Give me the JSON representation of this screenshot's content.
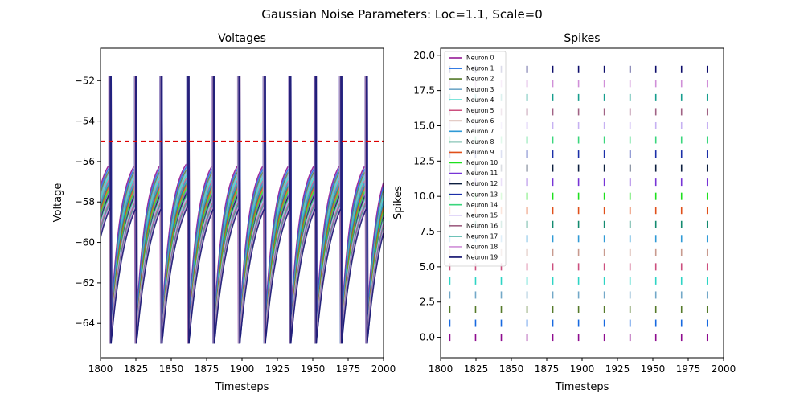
{
  "figure": {
    "suptitle": "Gaussian Noise Parameters: Loc=1.1, Scale=0"
  },
  "chart_data": [
    {
      "type": "line",
      "title": "Voltages",
      "xlabel": "Timesteps",
      "ylabel": "Voltage",
      "xlim": [
        1800,
        2000
      ],
      "ylim": [
        -65.7,
        -50.4
      ],
      "xticks": [
        1800,
        1825,
        1850,
        1875,
        1900,
        1925,
        1950,
        1975,
        2000
      ],
      "yticks": [
        -64,
        -62,
        -60,
        -58,
        -56,
        -54,
        -52
      ],
      "threshold": {
        "y": -55,
        "color": "#dd0000",
        "style": "dashed"
      },
      "reset_voltage": -65,
      "peak_voltage": -51.8,
      "spike_period": 18.2,
      "spike_times_base": [
        1806,
        1824,
        1842,
        1861,
        1879,
        1897,
        1915,
        1933,
        1951,
        1969,
        1987
      ],
      "series_colors": [
        "#8e0b8f",
        "#1769e0",
        "#557a2a",
        "#72a8c8",
        "#2dd4c4",
        "#cc4f7e",
        "#c89a8e",
        "#2f9ad6",
        "#138a6f",
        "#e0501a",
        "#1ee01e",
        "#7734d6",
        "#0c1f3f",
        "#1b2fa8",
        "#3ad67c",
        "#c6b1f2",
        "#a06284",
        "#179e8e",
        "#d08fd8",
        "#0d0d6b"
      ],
      "grid": false,
      "legend": false
    },
    {
      "type": "scatter",
      "title": "Spikes",
      "xlabel": "Timesteps",
      "ylabel": "Spikes",
      "xlim": [
        1800,
        2000
      ],
      "ylim": [
        -1.45,
        20.5
      ],
      "xticks": [
        1800,
        1825,
        1850,
        1875,
        1900,
        1925,
        1950,
        1975,
        2000
      ],
      "yticks": [
        0.0,
        2.5,
        5.0,
        7.5,
        10.0,
        12.5,
        15.0,
        17.5,
        20.0
      ],
      "ytick_labels": [
        "0.0",
        "2.5",
        "5.0",
        "7.5",
        "10.0",
        "12.5",
        "15.0",
        "17.5",
        "20.0"
      ],
      "spike_times": [
        1806.5,
        1824.7,
        1842.9,
        1861.1,
        1879.3,
        1897.5,
        1915.7,
        1933.9,
        1952.1,
        1970.3,
        1988.5
      ],
      "neurons": [
        {
          "name": "Neuron 0",
          "y": 0,
          "color": "#8e0b8f"
        },
        {
          "name": "Neuron 1",
          "y": 1,
          "color": "#1769e0"
        },
        {
          "name": "Neuron 2",
          "y": 2,
          "color": "#557a2a"
        },
        {
          "name": "Neuron 3",
          "y": 3,
          "color": "#72a8c8"
        },
        {
          "name": "Neuron 4",
          "y": 4,
          "color": "#2dd4c4"
        },
        {
          "name": "Neuron 5",
          "y": 5,
          "color": "#cc4f7e"
        },
        {
          "name": "Neuron 6",
          "y": 6,
          "color": "#c89a8e"
        },
        {
          "name": "Neuron 7",
          "y": 7,
          "color": "#2f9ad6"
        },
        {
          "name": "Neuron 8",
          "y": 8,
          "color": "#138a6f"
        },
        {
          "name": "Neuron 9",
          "y": 9,
          "color": "#e0501a"
        },
        {
          "name": "Neuron 10",
          "y": 10,
          "color": "#1ee01e"
        },
        {
          "name": "Neuron 11",
          "y": 11,
          "color": "#7734d6"
        },
        {
          "name": "Neuron 12",
          "y": 12,
          "color": "#0c1f3f"
        },
        {
          "name": "Neuron 13",
          "y": 13,
          "color": "#1b2fa8"
        },
        {
          "name": "Neuron 14",
          "y": 14,
          "color": "#3ad67c"
        },
        {
          "name": "Neuron 15",
          "y": 15,
          "color": "#c6b1f2"
        },
        {
          "name": "Neuron 16",
          "y": 16,
          "color": "#a06284"
        },
        {
          "name": "Neuron 17",
          "y": 17,
          "color": "#179e8e"
        },
        {
          "name": "Neuron 18",
          "y": 18,
          "color": "#d08fd8"
        },
        {
          "name": "Neuron 19",
          "y": 19,
          "color": "#0d0d6b"
        }
      ],
      "legend": "top-left",
      "grid": false
    }
  ]
}
